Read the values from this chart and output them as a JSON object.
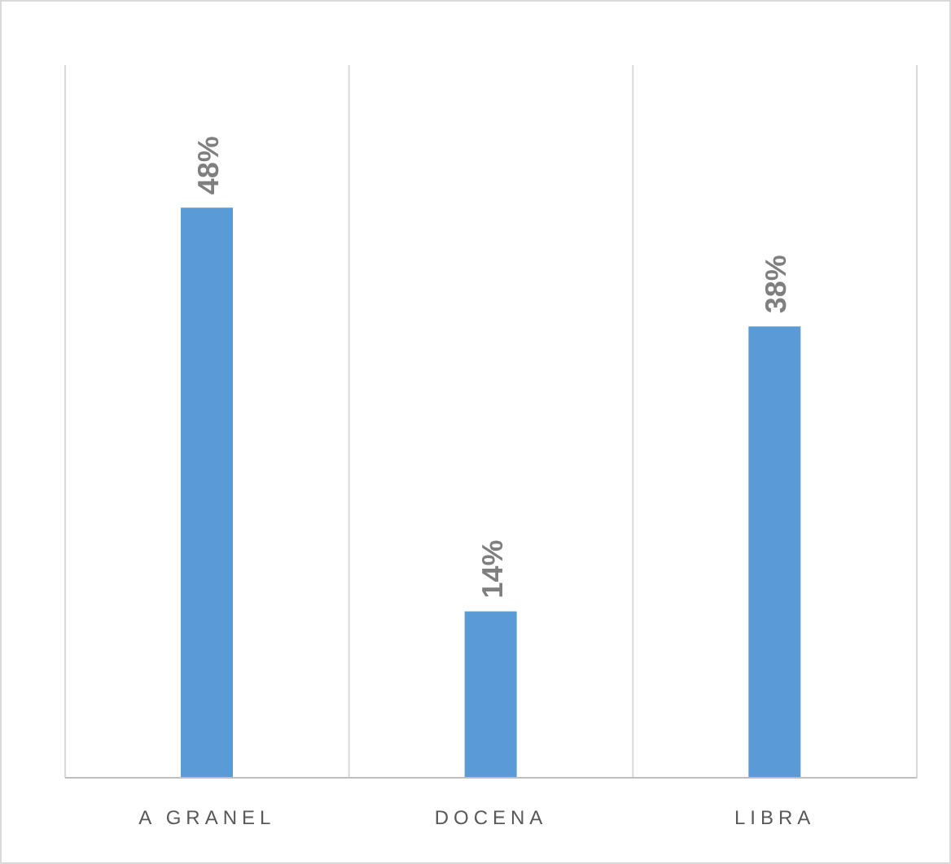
{
  "chart_data": {
    "type": "bar",
    "categories": [
      "A GRANEL",
      "DOCENA",
      "LIBRA"
    ],
    "values": [
      48,
      14,
      38
    ],
    "value_labels": [
      "48%",
      "14%",
      "38%"
    ],
    "color": "#5b9bd5",
    "ylim": [
      0,
      60
    ],
    "grid": "x"
  }
}
